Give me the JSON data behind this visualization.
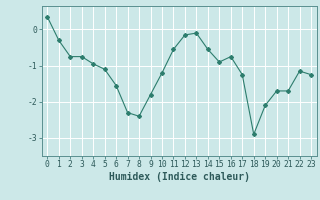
{
  "x": [
    0,
    1,
    2,
    3,
    4,
    5,
    6,
    7,
    8,
    9,
    10,
    11,
    12,
    13,
    14,
    15,
    16,
    17,
    18,
    19,
    20,
    21,
    22,
    23
  ],
  "y": [
    0.35,
    -0.3,
    -0.75,
    -0.75,
    -0.95,
    -1.1,
    -1.55,
    -2.3,
    -2.4,
    -1.8,
    -1.2,
    -0.55,
    -0.15,
    -0.1,
    -0.55,
    -0.9,
    -0.75,
    -1.25,
    -2.9,
    -2.1,
    -1.7,
    -1.7,
    -1.15,
    -1.25
  ],
  "xlabel": "Humidex (Indice chaleur)",
  "ylim": [
    -3.5,
    0.65
  ],
  "xlim": [
    -0.5,
    23.5
  ],
  "yticks": [
    0,
    -1,
    -2,
    -3
  ],
  "xticks": [
    0,
    1,
    2,
    3,
    4,
    5,
    6,
    7,
    8,
    9,
    10,
    11,
    12,
    13,
    14,
    15,
    16,
    17,
    18,
    19,
    20,
    21,
    22,
    23
  ],
  "line_color": "#2d7d6d",
  "marker": "D",
  "marker_size": 2.0,
  "bg_color": "#cce8e8",
  "grid_color": "#ffffff",
  "spine_color": "#5a9090",
  "tick_color": "#2e5a5a",
  "label_fontsize": 7.0,
  "tick_fontsize": 5.8
}
